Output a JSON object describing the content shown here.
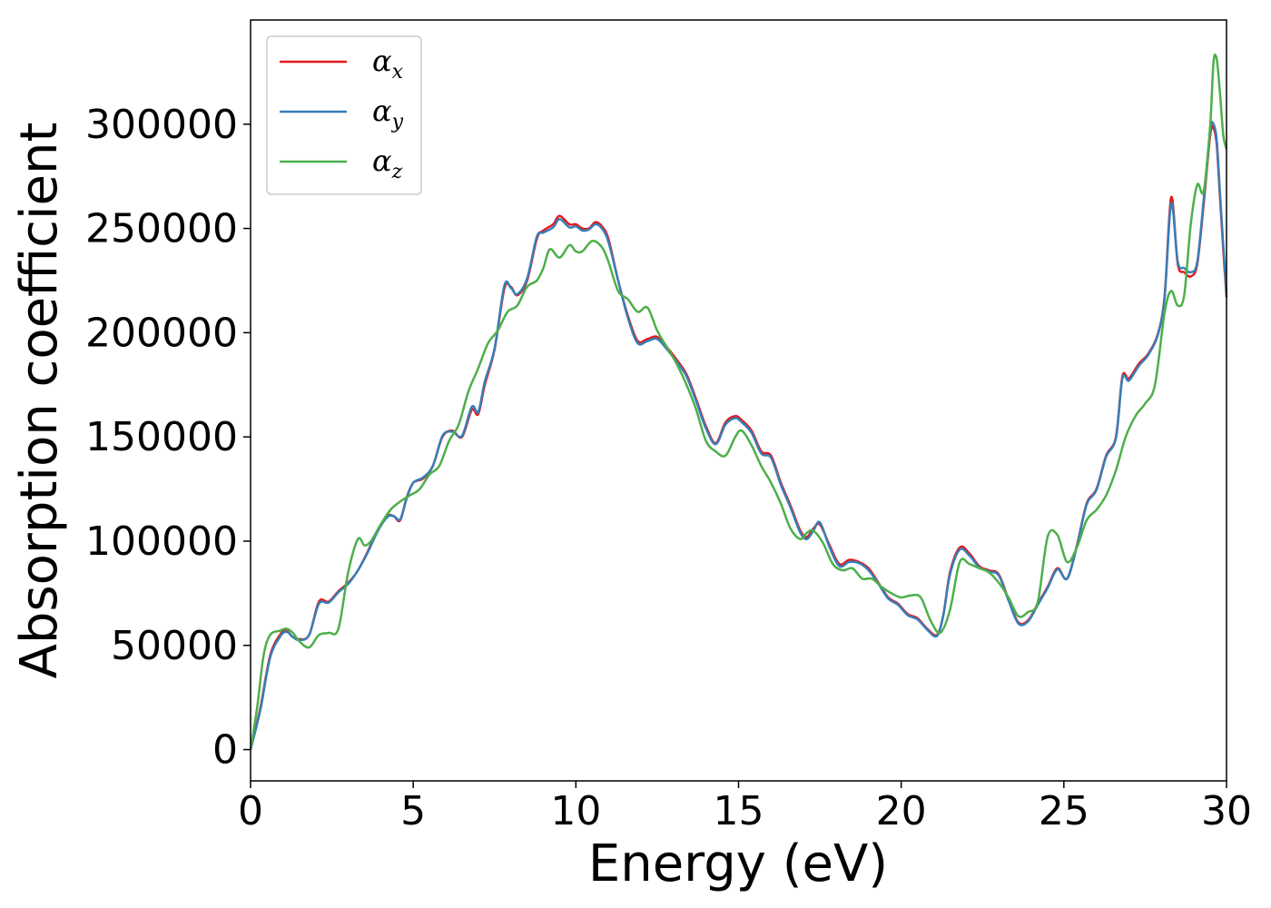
{
  "chart_data": {
    "type": "line",
    "xlabel": "Energy (eV)",
    "ylabel": "Absorption coefficient",
    "xlim": [
      0,
      30
    ],
    "ylim": [
      -15000,
      350000
    ],
    "xticks": [
      0,
      5,
      10,
      15,
      20,
      25,
      30
    ],
    "xtick_labels": [
      "0",
      "5",
      "10",
      "15",
      "20",
      "25",
      "30"
    ],
    "yticks": [
      0,
      50000,
      100000,
      150000,
      200000,
      250000,
      300000
    ],
    "ytick_labels": [
      "0",
      "50000",
      "100000",
      "150000",
      "200000",
      "250000",
      "300000"
    ],
    "grid": false,
    "legend_position": "top-left",
    "series": [
      {
        "name": "α_x",
        "legend_base": "α",
        "legend_sub": "x",
        "color": "#e41a1c",
        "x": [
          0,
          0.3,
          0.6,
          0.9,
          1.1,
          1.3,
          1.5,
          1.8,
          2.1,
          2.4,
          2.7,
          3.0,
          3.3,
          3.6,
          3.9,
          4.2,
          4.4,
          4.6,
          4.8,
          5.0,
          5.3,
          5.6,
          5.9,
          6.2,
          6.5,
          6.8,
          7.0,
          7.2,
          7.5,
          7.8,
          8.0,
          8.2,
          8.5,
          8.8,
          9.0,
          9.3,
          9.5,
          9.8,
          10.0,
          10.2,
          10.4,
          10.6,
          10.8,
          11.0,
          11.3,
          11.6,
          11.9,
          12.2,
          12.5,
          12.8,
          13.1,
          13.4,
          13.7,
          14.0,
          14.3,
          14.6,
          14.9,
          15.1,
          15.4,
          15.7,
          16.0,
          16.3,
          16.6,
          16.9,
          17.1,
          17.3,
          17.5,
          17.8,
          18.1,
          18.4,
          18.7,
          19.0,
          19.3,
          19.6,
          19.9,
          20.2,
          20.5,
          20.8,
          21.1,
          21.3,
          21.5,
          21.8,
          22.1,
          22.4,
          22.7,
          23.0,
          23.3,
          23.6,
          23.9,
          24.2,
          24.5,
          24.8,
          25.1,
          25.4,
          25.7,
          26.0,
          26.3,
          26.6,
          26.8,
          27.0,
          27.3,
          27.6,
          27.9,
          28.1,
          28.3,
          28.5,
          28.7,
          28.9,
          29.1,
          29.3,
          29.5,
          29.6,
          29.7,
          29.8,
          29.9,
          30.0
        ],
        "values": [
          0,
          20000,
          45000,
          55000,
          57000,
          54000,
          53000,
          55000,
          71000,
          71000,
          76000,
          80000,
          86000,
          95000,
          105000,
          112000,
          112000,
          110000,
          121000,
          128000,
          130000,
          136000,
          150000,
          153000,
          150000,
          163000,
          161000,
          175000,
          192000,
          221000,
          222000,
          218000,
          225000,
          245000,
          249000,
          252000,
          256000,
          252000,
          252000,
          250000,
          250000,
          253000,
          251000,
          245000,
          225000,
          208000,
          196000,
          197000,
          198000,
          193000,
          187000,
          180000,
          168000,
          155000,
          147000,
          157000,
          160000,
          158000,
          153000,
          143000,
          141000,
          128000,
          117000,
          105000,
          102000,
          106000,
          108000,
          98000,
          89000,
          91000,
          90000,
          87000,
          80000,
          73000,
          70000,
          65000,
          63000,
          58000,
          55000,
          65000,
          85000,
          97000,
          94000,
          88000,
          86000,
          84000,
          72000,
          61000,
          62000,
          70000,
          78000,
          87000,
          82000,
          98000,
          118000,
          125000,
          141000,
          150000,
          179000,
          178000,
          185000,
          190000,
          200000,
          218000,
          265000,
          233000,
          229000,
          227000,
          233000,
          262000,
          295000,
          298000,
          290000,
          265000,
          240000,
          217000
        ]
      },
      {
        "name": "α_y",
        "legend_base": "α",
        "legend_sub": "y",
        "color": "#377eb8",
        "x": [
          0,
          0.3,
          0.6,
          0.9,
          1.1,
          1.3,
          1.5,
          1.8,
          2.1,
          2.4,
          2.7,
          3.0,
          3.3,
          3.6,
          3.9,
          4.2,
          4.4,
          4.6,
          4.8,
          5.0,
          5.3,
          5.6,
          5.9,
          6.2,
          6.5,
          6.8,
          7.0,
          7.2,
          7.5,
          7.8,
          8.0,
          8.2,
          8.5,
          8.8,
          9.0,
          9.3,
          9.5,
          9.8,
          10.0,
          10.2,
          10.4,
          10.6,
          10.8,
          11.0,
          11.3,
          11.6,
          11.9,
          12.2,
          12.5,
          12.8,
          13.1,
          13.4,
          13.7,
          14.0,
          14.3,
          14.6,
          14.9,
          15.1,
          15.4,
          15.7,
          16.0,
          16.3,
          16.6,
          16.9,
          17.1,
          17.3,
          17.5,
          17.8,
          18.1,
          18.4,
          18.7,
          19.0,
          19.3,
          19.6,
          19.9,
          20.2,
          20.5,
          20.8,
          21.1,
          21.3,
          21.5,
          21.8,
          22.1,
          22.4,
          22.7,
          23.0,
          23.3,
          23.6,
          23.9,
          24.2,
          24.5,
          24.8,
          25.1,
          25.4,
          25.7,
          26.0,
          26.3,
          26.6,
          26.8,
          27.0,
          27.3,
          27.6,
          27.9,
          28.1,
          28.3,
          28.5,
          28.7,
          28.9,
          29.1,
          29.3,
          29.5,
          29.6,
          29.7,
          29.8,
          29.9,
          30.0
        ],
        "values": [
          0,
          19000,
          44000,
          54000,
          56500,
          54000,
          52500,
          55000,
          70000,
          70500,
          75500,
          79500,
          86000,
          94500,
          104500,
          111500,
          112000,
          110500,
          120500,
          128000,
          130500,
          136000,
          150500,
          152500,
          150500,
          164500,
          162000,
          176500,
          192500,
          222500,
          221500,
          218500,
          226000,
          246000,
          248000,
          250500,
          254500,
          250500,
          251000,
          249000,
          249500,
          252000,
          250000,
          243500,
          225000,
          207000,
          195000,
          196000,
          197000,
          192000,
          186000,
          179000,
          167000,
          154000,
          146500,
          156000,
          159000,
          157000,
          152000,
          142000,
          140000,
          127000,
          116000,
          104000,
          101000,
          105000,
          109000,
          97000,
          88000,
          90000,
          89500,
          86000,
          79500,
          72500,
          69500,
          64500,
          62500,
          57500,
          54500,
          65000,
          84000,
          96000,
          93000,
          87500,
          85500,
          83500,
          71500,
          60500,
          61500,
          69500,
          77500,
          86500,
          82000,
          97500,
          117500,
          124500,
          140500,
          149500,
          178000,
          177000,
          184000,
          189500,
          199500,
          217500,
          262000,
          234000,
          231000,
          229000,
          234000,
          264000,
          297000,
          300000,
          292000,
          267000,
          242000,
          219000
        ]
      },
      {
        "name": "α_z",
        "legend_base": "α",
        "legend_sub": "z",
        "color": "#4daf4a",
        "x": [
          0,
          0.2,
          0.4,
          0.6,
          0.9,
          1.1,
          1.3,
          1.5,
          1.8,
          2.1,
          2.4,
          2.7,
          3.0,
          3.3,
          3.5,
          3.7,
          4.0,
          4.3,
          4.6,
          4.9,
          5.2,
          5.5,
          5.8,
          6.1,
          6.4,
          6.7,
          7.0,
          7.3,
          7.6,
          7.9,
          8.2,
          8.5,
          8.8,
          9.0,
          9.2,
          9.5,
          9.8,
          10.0,
          10.2,
          10.5,
          10.8,
          11.0,
          11.3,
          11.6,
          11.9,
          12.2,
          12.5,
          12.8,
          13.1,
          13.4,
          13.7,
          14.0,
          14.3,
          14.6,
          14.9,
          15.1,
          15.4,
          15.7,
          16.0,
          16.3,
          16.6,
          16.9,
          17.1,
          17.3,
          17.6,
          17.9,
          18.2,
          18.5,
          18.8,
          19.1,
          19.4,
          19.7,
          20.0,
          20.3,
          20.6,
          20.9,
          21.2,
          21.5,
          21.8,
          22.1,
          22.4,
          22.7,
          23.0,
          23.3,
          23.6,
          23.9,
          24.2,
          24.5,
          24.8,
          25.1,
          25.4,
          25.7,
          26.0,
          26.3,
          26.6,
          26.9,
          27.2,
          27.5,
          27.8,
          28.1,
          28.3,
          28.5,
          28.7,
          28.9,
          29.1,
          29.3,
          29.5,
          29.6,
          29.7,
          29.8,
          29.9,
          30.0
        ],
        "values": [
          0,
          20000,
          45000,
          55000,
          57000,
          58000,
          56000,
          52000,
          49000,
          55000,
          56000,
          58000,
          85000,
          101000,
          98000,
          100000,
          108000,
          115000,
          119000,
          122000,
          125000,
          132000,
          136000,
          148000,
          156000,
          172000,
          183000,
          195000,
          201000,
          210000,
          213000,
          222000,
          225000,
          231000,
          240000,
          236000,
          242000,
          239000,
          239000,
          244000,
          241000,
          234000,
          220000,
          216000,
          210000,
          212000,
          201000,
          193000,
          185000,
          175000,
          163000,
          148000,
          143000,
          141000,
          150000,
          153000,
          146000,
          136000,
          128000,
          118000,
          106000,
          101000,
          104000,
          105000,
          99000,
          89000,
          86000,
          87000,
          82000,
          82000,
          78000,
          75000,
          73000,
          74000,
          73000,
          62000,
          56000,
          67000,
          90000,
          89000,
          87000,
          85000,
          80000,
          73000,
          64000,
          66000,
          71000,
          102000,
          103000,
          90000,
          97000,
          110000,
          115000,
          122000,
          134000,
          150000,
          160000,
          166000,
          175000,
          210000,
          220000,
          213000,
          218000,
          252000,
          271000,
          268000,
          300000,
          330000,
          331000,
          315000,
          295000,
          288000
        ]
      }
    ]
  }
}
